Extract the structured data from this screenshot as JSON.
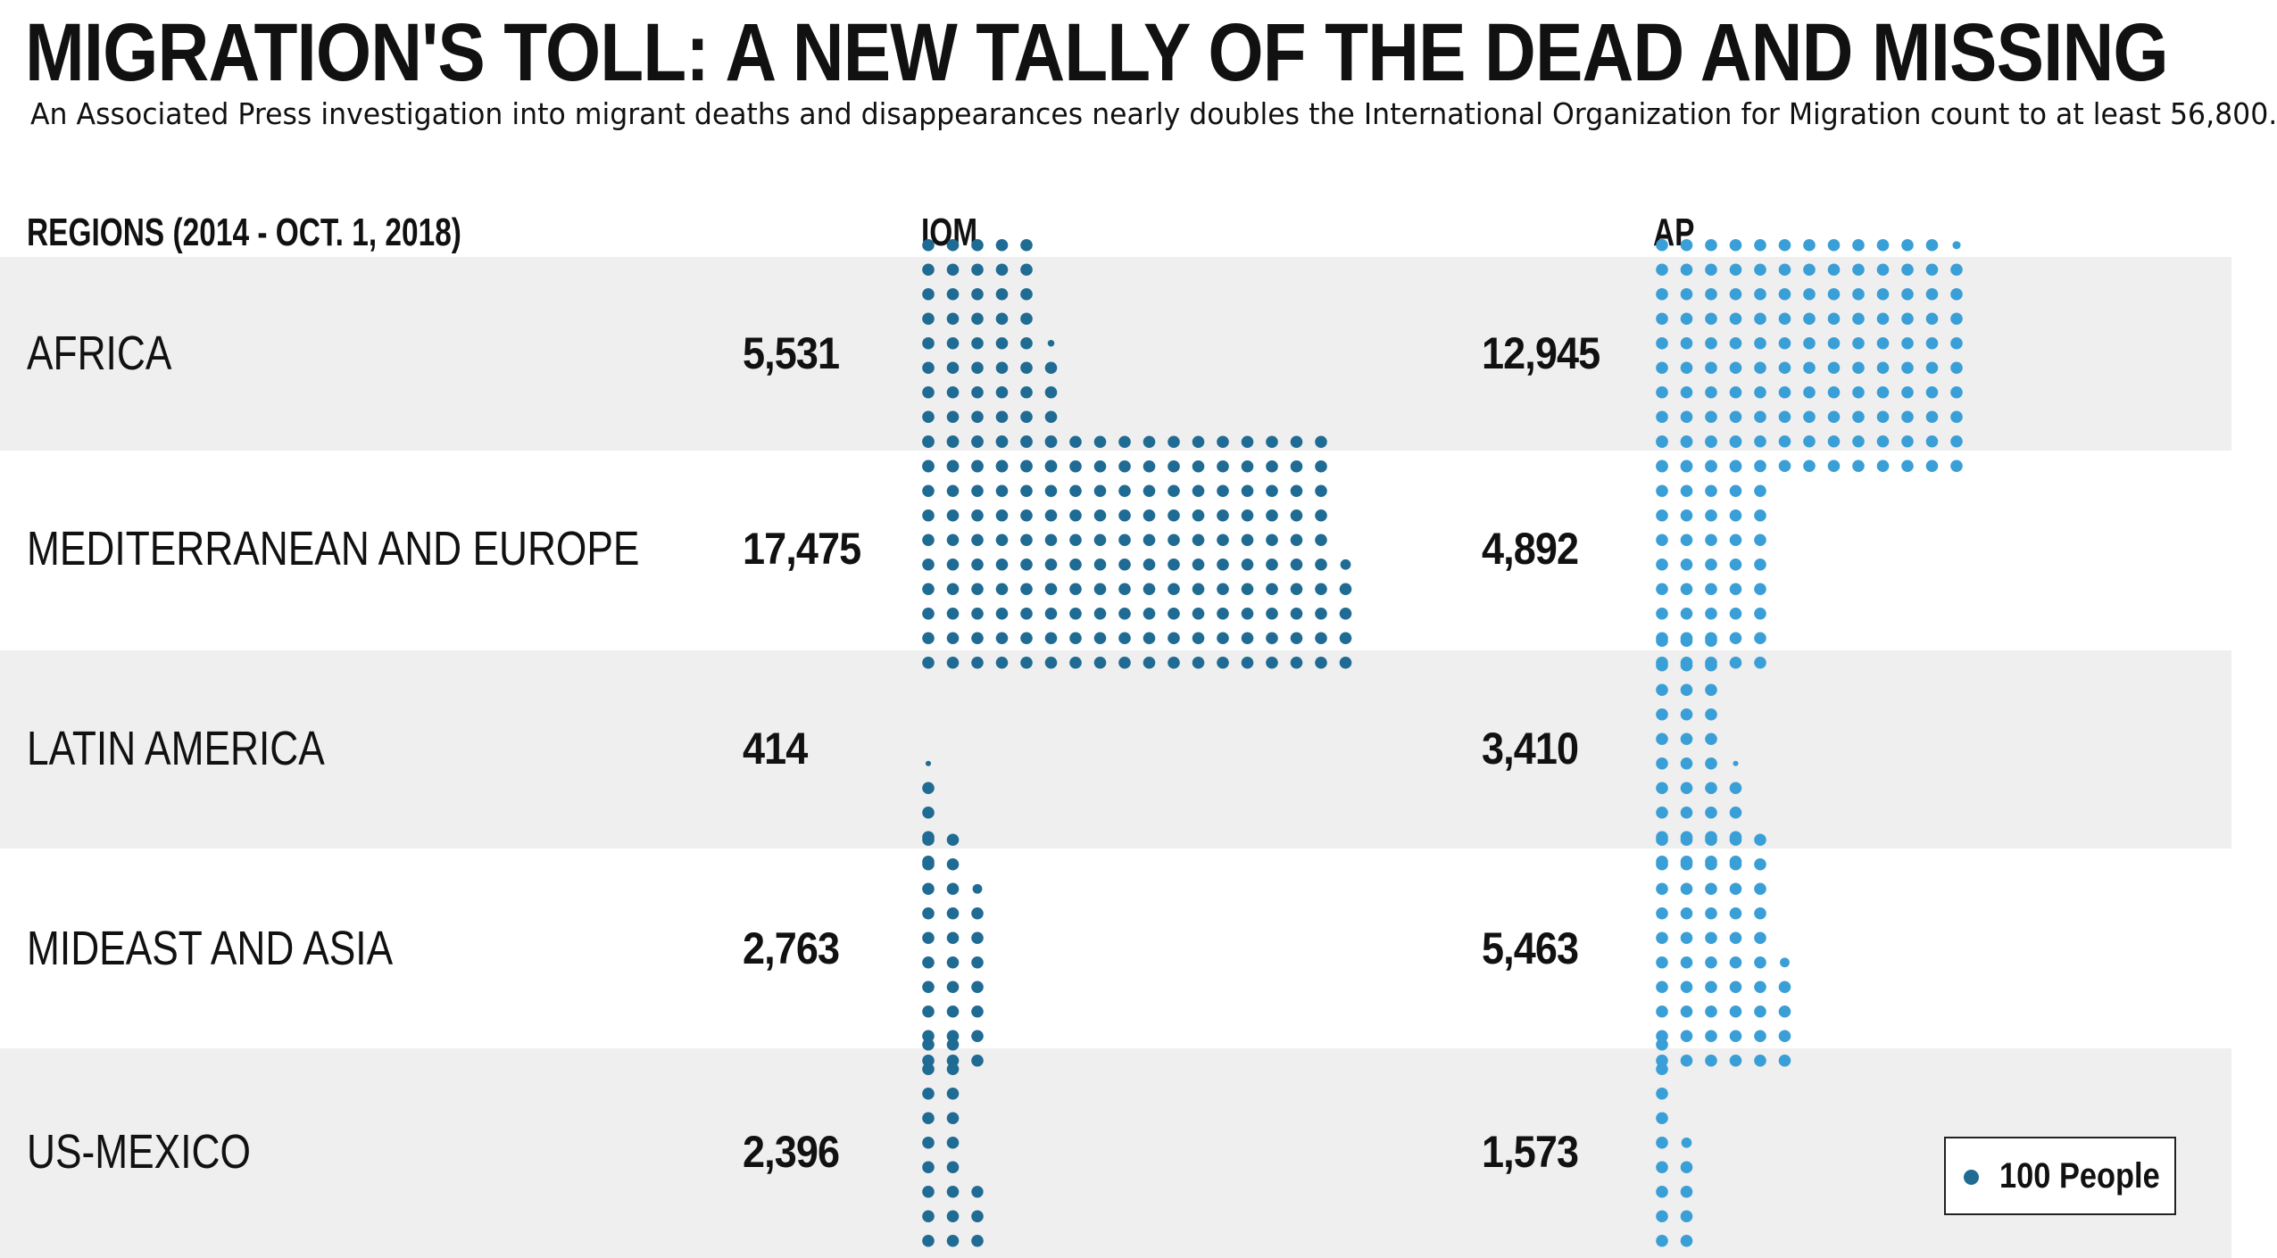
{
  "title": "MIGRATION'S TOLL: A NEW TALLY OF THE DEAD AND MISSING",
  "subtitle": "An Associated Press investigation into migrant deaths and disappearances nearly doubles the International Organization for Migration count to at least 56,800.",
  "columns": {
    "regions": "REGIONS (2014 - OCT. 1, 2018)",
    "iom": "IOM",
    "ap": "AP"
  },
  "legend": {
    "label": "100 People",
    "unit": 100
  },
  "colors": {
    "iom": "#1f6b93",
    "ap": "#3a9fd6",
    "shade": "#efefef"
  },
  "chart_data": {
    "type": "table",
    "unit_per_dot": 100,
    "series": [
      {
        "name": "IOM",
        "values": [
          5531,
          17475,
          414,
          2763,
          2396
        ]
      },
      {
        "name": "AP",
        "values": [
          12945,
          4892,
          3410,
          5463,
          1573
        ]
      }
    ],
    "categories": [
      "AFRICA",
      "MEDITERRANEAN AND EUROPE",
      "LATIN AMERICA",
      "MIDEAST AND ASIA",
      "US-MEXICO"
    ],
    "rows": [
      {
        "region": "AFRICA",
        "iom": 5531,
        "iom_label": "5,531",
        "ap": 12945,
        "ap_label": "12,945"
      },
      {
        "region": "MEDITERRANEAN AND EUROPE",
        "iom": 17475,
        "iom_label": "17,475",
        "ap": 4892,
        "ap_label": "4,892"
      },
      {
        "region": "LATIN AMERICA",
        "iom": 414,
        "iom_label": "414",
        "ap": 3410,
        "ap_label": "3,410"
      },
      {
        "region": "MIDEAST AND ASIA",
        "iom": 2763,
        "iom_label": "2,763",
        "ap": 5463,
        "ap_label": "5,463"
      },
      {
        "region": "US-MEXICO",
        "iom": 2396,
        "iom_label": "2,396",
        "ap": 1573,
        "ap_label": "1,573"
      }
    ]
  }
}
